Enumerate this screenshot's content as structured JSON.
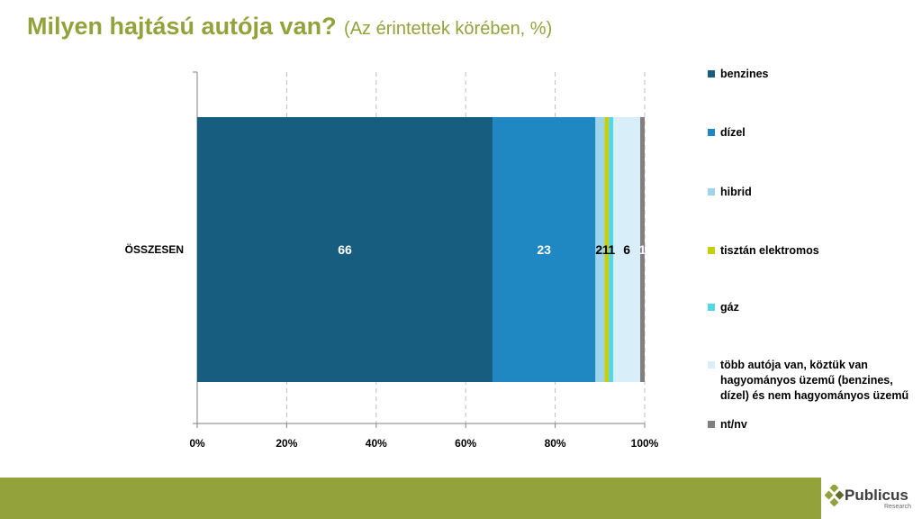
{
  "header": {
    "title": "Milyen hajtású autója van?",
    "subtitle": "(Az érintettek körében, %)"
  },
  "chart_data": {
    "type": "bar",
    "orientation": "horizontal",
    "stacked": true,
    "categories": [
      "ÖSSZESEN"
    ],
    "series": [
      {
        "name": "benzines",
        "values": [
          66
        ],
        "color": "#175d80"
      },
      {
        "name": "dízel",
        "values": [
          23
        ],
        "color": "#1f87c2"
      },
      {
        "name": "hibrid",
        "values": [
          2
        ],
        "color": "#9fd4ee"
      },
      {
        "name": "tisztán elektromos",
        "values": [
          1
        ],
        "color": "#c5cf0f"
      },
      {
        "name": "gáz",
        "values": [
          1
        ],
        "color": "#53d6e6"
      },
      {
        "name": "több autója van, köztük van hagyományos üzemű (benzines, dízel) és nem hagyományos üzemű",
        "values": [
          6
        ],
        "color": "#d8eef8"
      },
      {
        "name": "nt/nv",
        "values": [
          1
        ],
        "color": "#808080"
      }
    ],
    "data_labels": [
      "66",
      "23",
      "2",
      "1",
      "1",
      "6",
      "1"
    ],
    "x_ticks": [
      "0%",
      "20%",
      "40%",
      "60%",
      "80%",
      "100%"
    ],
    "xlim": [
      0,
      100
    ],
    "grid": "vertical dashed",
    "legend_position": "right"
  },
  "brand": {
    "logo_text": "Publicus",
    "logo_sub": "Research",
    "accent_color": "#94a23c"
  }
}
